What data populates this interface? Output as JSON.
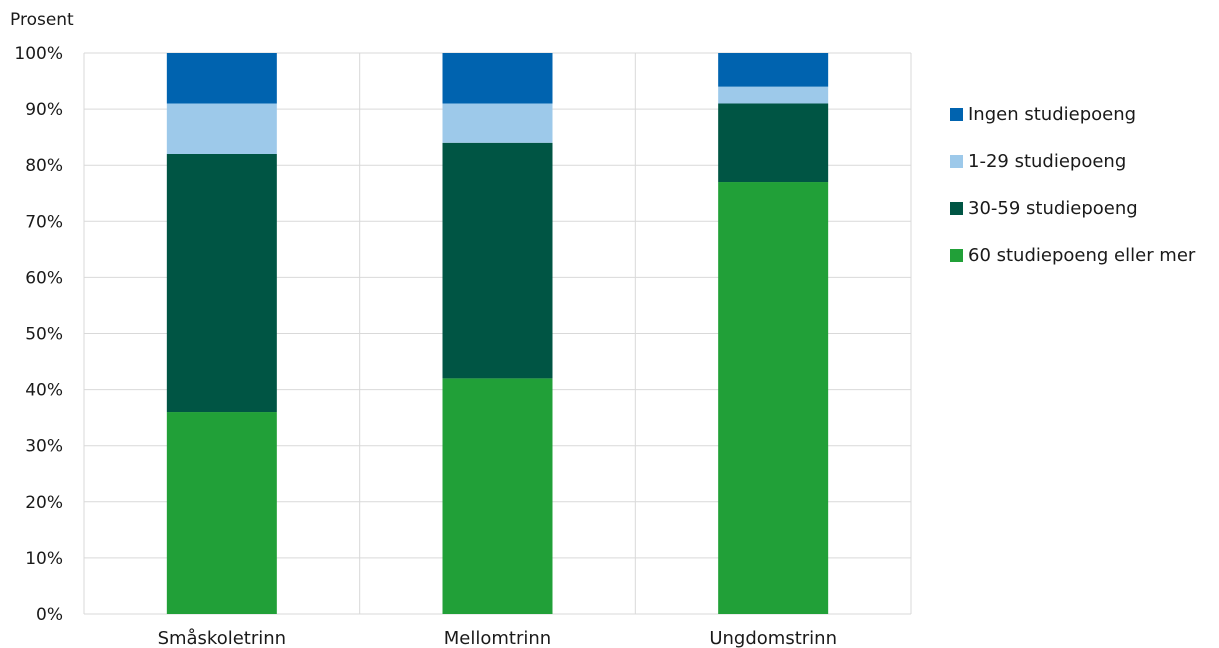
{
  "chart_data": {
    "type": "bar",
    "stacked": true,
    "ylabel": "Prosent",
    "xlabel": "",
    "ylim": [
      0,
      100
    ],
    "y_ticks": [
      "0%",
      "10%",
      "20%",
      "30%",
      "40%",
      "50%",
      "60%",
      "70%",
      "80%",
      "90%",
      "100%"
    ],
    "categories": [
      "Småskoletrinn",
      "Mellomtrinn",
      "Ungdomstrinn"
    ],
    "series": [
      {
        "name": "60 studiepoeng eller mer",
        "color": "#21a038",
        "values": [
          36,
          42,
          77
        ]
      },
      {
        "name": "30-59 studiepoeng",
        "color": "#005544",
        "values": [
          46,
          42,
          14
        ]
      },
      {
        "name": "1-29 studiepoeng",
        "color": "#9dc9ea",
        "values": [
          9,
          7,
          3
        ]
      },
      {
        "name": "Ingen studiepoeng",
        "color": "#0063af",
        "values": [
          9,
          9,
          6
        ]
      }
    ],
    "legend_position": "right",
    "grid": true
  }
}
